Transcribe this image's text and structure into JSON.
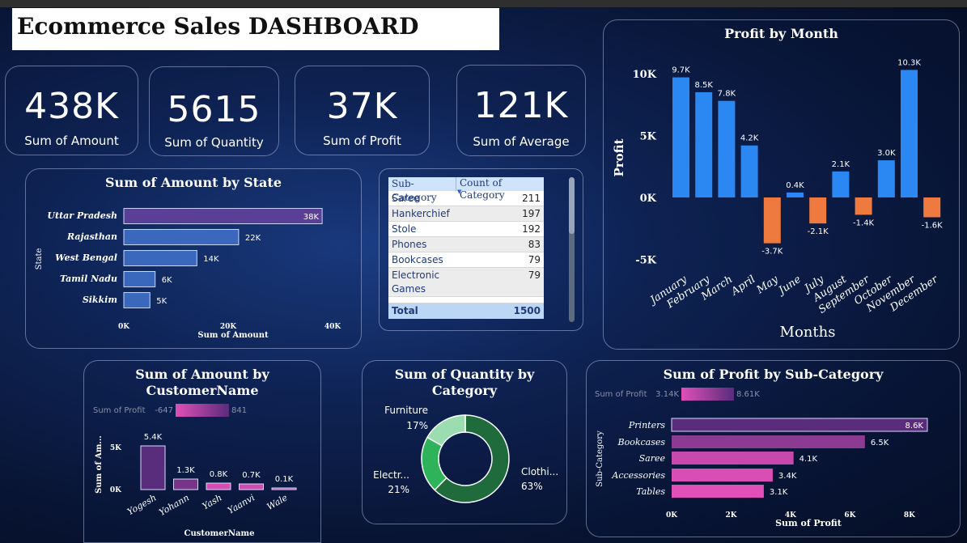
{
  "title": "Ecommerce Sales DASHBOARD",
  "kpis": [
    {
      "value": "438K",
      "label": "Sum of Amount"
    },
    {
      "value": "5615",
      "label": "Sum of Quantity"
    },
    {
      "value": "37K",
      "label": "Sum of Profit"
    },
    {
      "value": "121K",
      "label": "Sum of Average"
    }
  ],
  "table": {
    "headers": [
      "Sub-Category",
      "Count of Category"
    ],
    "rows": [
      [
        "Saree",
        "211"
      ],
      [
        "Hankerchief",
        "197"
      ],
      [
        "Stole",
        "192"
      ],
      [
        "Phones",
        "83"
      ],
      [
        "Bookcases",
        "79"
      ],
      [
        "Electronic Games",
        "79"
      ]
    ],
    "total_label": "Total",
    "total_value": "1500"
  },
  "colors": {
    "bar_blue": "#2b87f2",
    "bar_orange": "#ef7a3f",
    "state_top": "#5a3f97",
    "state_bar": "#3a68bd",
    "magenta": "#e050b8",
    "purple": "#5a2c7c",
    "donut_dark": "#1f6b3b",
    "donut_mid": "#2fb35a",
    "donut_light": "#9bdcb0"
  },
  "chart_data": [
    {
      "id": "state",
      "type": "bar",
      "orientation": "horizontal",
      "title": "Sum of Amount by State",
      "xlabel": "Sum of Amount",
      "ylabel": "State",
      "categories": [
        "Uttar Pradesh",
        "Rajasthan",
        "West Bengal",
        "Tamil Nadu",
        "Sikkim"
      ],
      "values": [
        38000,
        22000,
        14000,
        6000,
        5000
      ],
      "data_labels": [
        "38K",
        "22K",
        "14K",
        "6K",
        "5K"
      ],
      "xticks": [
        "0K",
        "20K",
        "40K"
      ],
      "xlim": [
        0,
        40000
      ]
    },
    {
      "id": "month",
      "type": "bar",
      "title": "Profit by Month",
      "xlabel": "Months",
      "ylabel": "Profit",
      "categories": [
        "January",
        "February",
        "March",
        "April",
        "May",
        "June",
        "July",
        "August",
        "September",
        "October",
        "November",
        "December"
      ],
      "values": [
        9700,
        8500,
        7800,
        4200,
        -3700,
        400,
        -2100,
        2100,
        -1400,
        3000,
        10300,
        -1600
      ],
      "data_labels": [
        "9.7K",
        "8.5K",
        "7.8K",
        "4.2K",
        "-3.7K",
        "0.4K",
        "-2.1K",
        "2.1K",
        "-1.4K",
        "3.0K",
        "10.3K",
        "-1.6K"
      ],
      "yticks": [
        "10K",
        "5K",
        "0K",
        "-5K"
      ],
      "ylim": [
        -5000,
        10000
      ]
    },
    {
      "id": "customer",
      "type": "bar",
      "title": "Sum of Amount by CustomerName",
      "xlabel": "CustomerName",
      "ylabel": "Sum of Am...",
      "legend": {
        "label": "Sum of Profit",
        "min": "-647",
        "max": "841"
      },
      "categories": [
        "Yogesh",
        "Yohann",
        "Yash",
        "Yaanvi",
        "Wale"
      ],
      "values": [
        5400,
        1300,
        800,
        700,
        100
      ],
      "data_labels": [
        "5.4K",
        "1.3K",
        "0.8K",
        "0.7K",
        "0.1K"
      ],
      "yticks": [
        "5K",
        "0K"
      ],
      "ylim": [
        0,
        5500
      ]
    },
    {
      "id": "category",
      "type": "pie",
      "title": "Sum of Quantity by Category",
      "categories": [
        "Clothi...",
        "Electr...",
        "Furniture"
      ],
      "values": [
        63,
        21,
        17
      ],
      "data_labels": [
        "63%",
        "21%",
        "17%"
      ]
    },
    {
      "id": "subcat",
      "type": "bar",
      "orientation": "horizontal",
      "title": "Sum of Profit by Sub-Category",
      "xlabel": "Sum of Profit",
      "ylabel": "Sub-Category",
      "legend": {
        "label": "Sum of Profit",
        "min": "3.14K",
        "max": "8.61K"
      },
      "categories": [
        "Printers",
        "Bookcases",
        "Saree",
        "Accessories",
        "Tables"
      ],
      "values": [
        8600,
        6500,
        4100,
        3400,
        3100
      ],
      "data_labels": [
        "8.6K",
        "6.5K",
        "4.1K",
        "3.4K",
        "3.1K"
      ],
      "xticks": [
        "0K",
        "2K",
        "4K",
        "6K",
        "8K"
      ],
      "xlim": [
        0,
        8600
      ]
    }
  ]
}
